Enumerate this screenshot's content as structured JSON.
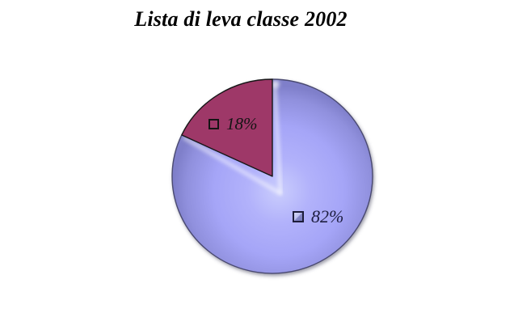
{
  "chart_data": {
    "type": "pie",
    "title": "Lista di leva classe 2002",
    "start_angle_deg": -90,
    "direction": "clockwise",
    "legend_position": "none",
    "data_label_style": "percent-with-legend-key",
    "slices": [
      {
        "label": "82%",
        "value": 82,
        "color": "#a3a3f8",
        "bevel": true
      },
      {
        "label": "18%",
        "value": 18,
        "color": "#9e3768",
        "bevel": false
      }
    ],
    "colors": {
      "background": "#ffffff",
      "title_text": "#000000",
      "slice_82_fill": "#a3a3f8",
      "slice_82_rim": "#4a4a70",
      "slice_18_fill": "#9e3768",
      "slice_18_outline": "#161616",
      "label_18_text": "#141414",
      "label_82_text": "#1e1e40"
    }
  }
}
